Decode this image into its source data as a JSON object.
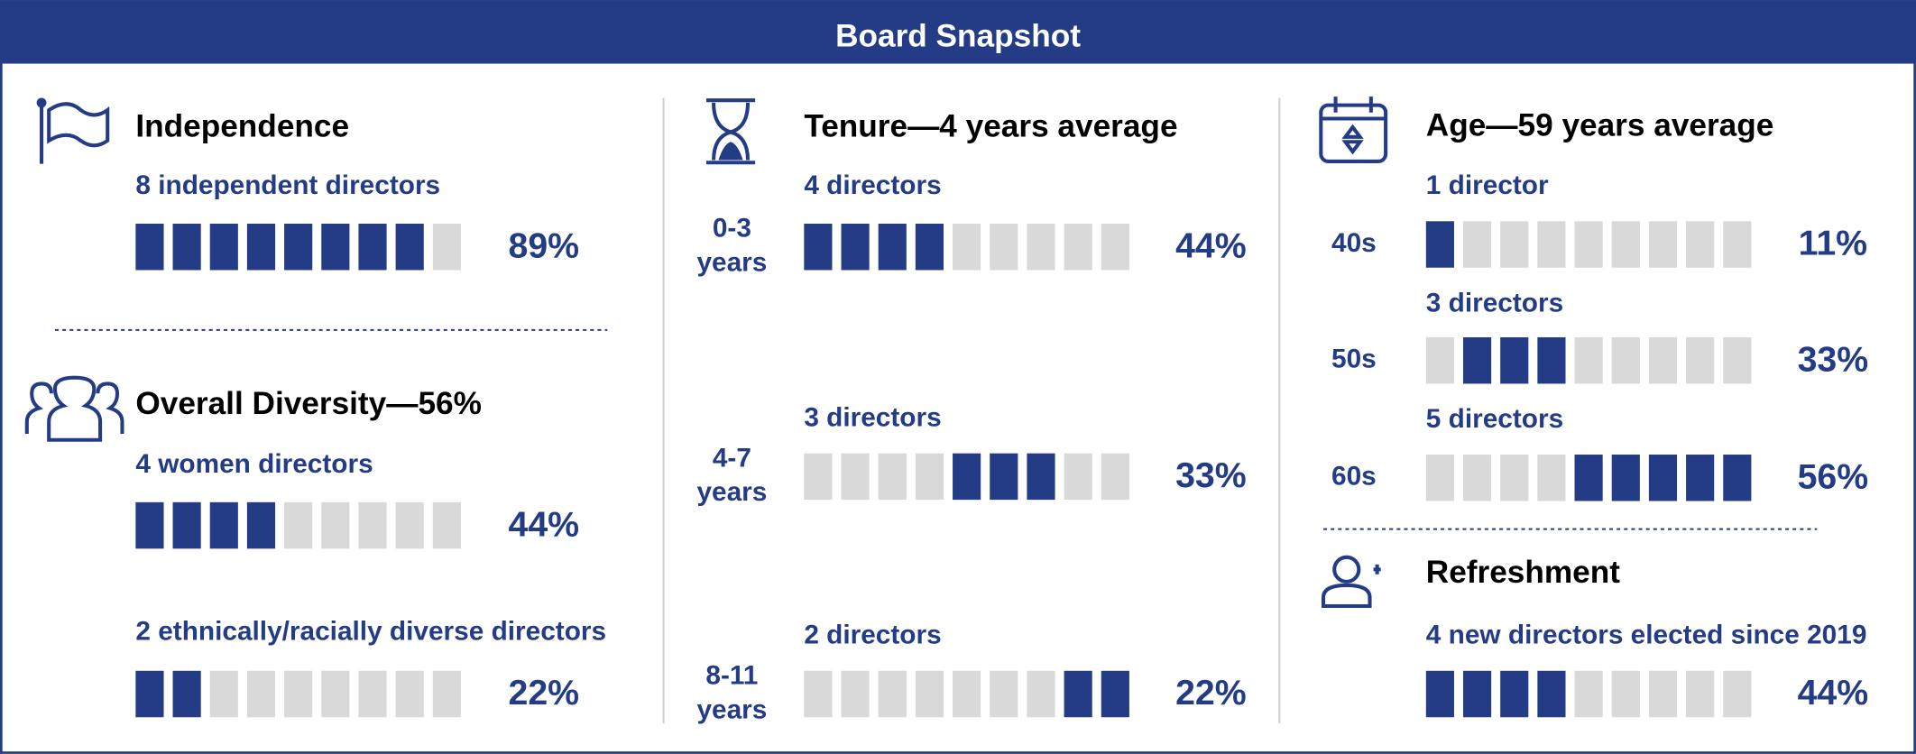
{
  "header": {
    "title": "Board Snapshot"
  },
  "board_size": 9,
  "independence": {
    "title": "Independence",
    "rows": [
      {
        "label": "8 independent directors",
        "count": 8,
        "percent": "89%"
      }
    ]
  },
  "diversity": {
    "title": "Overall Diversity—56%",
    "rows": [
      {
        "label": "4 women directors",
        "count": 4,
        "percent": "44%"
      },
      {
        "label": "2 ethnically/racially diverse directors",
        "count": 2,
        "percent": "22%"
      }
    ]
  },
  "tenure": {
    "title": "Tenure—4 years average",
    "stacked": true,
    "rows": [
      {
        "side": [
          "0-3",
          "years"
        ],
        "label": "4 directors",
        "count": 4,
        "percent": "44%"
      },
      {
        "side": [
          "4-7",
          "years"
        ],
        "label": "3 directors",
        "count": 3,
        "percent": "33%"
      },
      {
        "side": [
          "8-11",
          "years"
        ],
        "label": "2 directors",
        "count": 2,
        "percent": "22%"
      }
    ]
  },
  "age": {
    "title": "Age—59 years average",
    "stacked": true,
    "rows": [
      {
        "side": [
          "40s"
        ],
        "label": "1 director",
        "count": 1,
        "percent": "11%"
      },
      {
        "side": [
          "50s"
        ],
        "label": "3 directors",
        "count": 3,
        "percent": "33%"
      },
      {
        "side": [
          "60s"
        ],
        "label": "5 directors",
        "count": 5,
        "percent": "56%"
      }
    ]
  },
  "refreshment": {
    "title": "Refreshment",
    "rows": [
      {
        "label": "4 new directors elected since 2019",
        "count": 4,
        "percent": "44%"
      }
    ]
  }
}
